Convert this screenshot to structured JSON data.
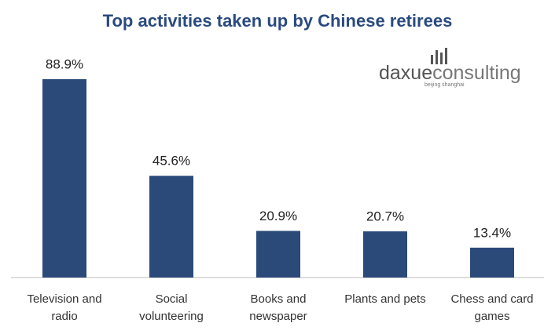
{
  "chart_data": {
    "type": "bar",
    "title": "Top activities taken up by Chinese retirees",
    "categories": [
      "Television and radio",
      "Social volunteering",
      "Books and newspaper",
      "Plants and pets",
      "Chess and card games"
    ],
    "values": [
      88.9,
      45.6,
      20.9,
      20.7,
      13.4
    ],
    "value_labels": [
      "88.9%",
      "45.6%",
      "20.9%",
      "20.7%",
      "13.4%"
    ],
    "color": "#2b4a7a"
  },
  "logo": {
    "brand": "daxue",
    "name": "consulting",
    "tagline": "beijing shanghai"
  }
}
